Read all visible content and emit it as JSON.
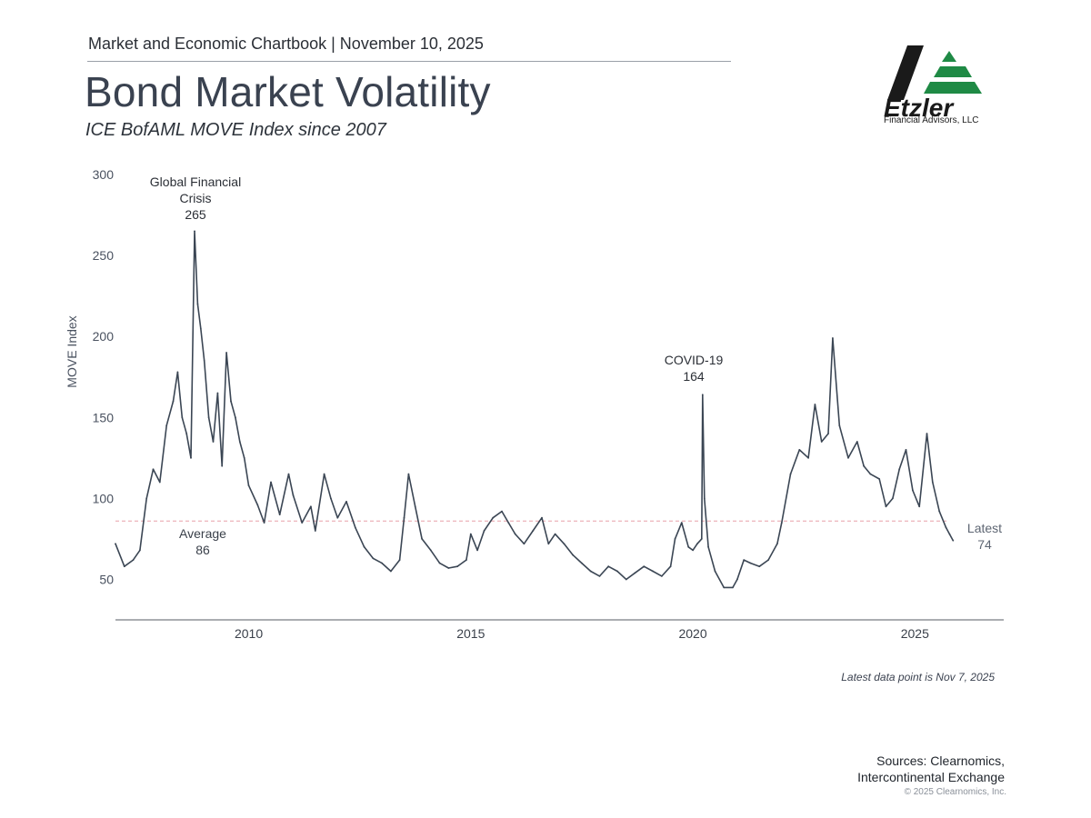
{
  "header": {
    "chartbook_line": "Market and Economic Chartbook | November 10, 2025",
    "title": "Bond Market Volatility",
    "subtitle": "ICE BofAML MOVE Index since 2007"
  },
  "logo": {
    "wordmark": "Etzler",
    "caption": "Financial Advisors, LLC",
    "colors": {
      "dark": "#1a1a1a",
      "green": "#1f8a45"
    }
  },
  "chart_data": {
    "type": "line",
    "series": [
      {
        "name": "ICE BofAML MOVE Index",
        "color": "#3b4654",
        "points": [
          [
            2007.0,
            72
          ],
          [
            2007.2,
            58
          ],
          [
            2007.4,
            62
          ],
          [
            2007.55,
            68
          ],
          [
            2007.7,
            100
          ],
          [
            2007.85,
            118
          ],
          [
            2008.0,
            110
          ],
          [
            2008.15,
            145
          ],
          [
            2008.3,
            160
          ],
          [
            2008.4,
            178
          ],
          [
            2008.5,
            150
          ],
          [
            2008.6,
            140
          ],
          [
            2008.7,
            125
          ],
          [
            2008.78,
            265
          ],
          [
            2008.85,
            220
          ],
          [
            2008.92,
            205
          ],
          [
            2009.0,
            185
          ],
          [
            2009.1,
            150
          ],
          [
            2009.2,
            135
          ],
          [
            2009.3,
            165
          ],
          [
            2009.4,
            120
          ],
          [
            2009.5,
            190
          ],
          [
            2009.6,
            160
          ],
          [
            2009.7,
            150
          ],
          [
            2009.8,
            135
          ],
          [
            2009.9,
            125
          ],
          [
            2010.0,
            108
          ],
          [
            2010.2,
            96
          ],
          [
            2010.35,
            85
          ],
          [
            2010.5,
            110
          ],
          [
            2010.7,
            90
          ],
          [
            2010.9,
            115
          ],
          [
            2011.0,
            102
          ],
          [
            2011.2,
            85
          ],
          [
            2011.4,
            95
          ],
          [
            2011.5,
            80
          ],
          [
            2011.7,
            115
          ],
          [
            2011.85,
            100
          ],
          [
            2012.0,
            88
          ],
          [
            2012.2,
            98
          ],
          [
            2012.4,
            82
          ],
          [
            2012.6,
            70
          ],
          [
            2012.8,
            63
          ],
          [
            2013.0,
            60
          ],
          [
            2013.2,
            55
          ],
          [
            2013.4,
            62
          ],
          [
            2013.5,
            88
          ],
          [
            2013.6,
            115
          ],
          [
            2013.75,
            95
          ],
          [
            2013.9,
            75
          ],
          [
            2014.1,
            68
          ],
          [
            2014.3,
            60
          ],
          [
            2014.5,
            57
          ],
          [
            2014.7,
            58
          ],
          [
            2014.9,
            62
          ],
          [
            2015.0,
            78
          ],
          [
            2015.15,
            68
          ],
          [
            2015.3,
            80
          ],
          [
            2015.5,
            88
          ],
          [
            2015.7,
            92
          ],
          [
            2015.85,
            85
          ],
          [
            2016.0,
            78
          ],
          [
            2016.2,
            72
          ],
          [
            2016.4,
            80
          ],
          [
            2016.6,
            88
          ],
          [
            2016.75,
            72
          ],
          [
            2016.9,
            78
          ],
          [
            2017.1,
            72
          ],
          [
            2017.3,
            65
          ],
          [
            2017.5,
            60
          ],
          [
            2017.7,
            55
          ],
          [
            2017.9,
            52
          ],
          [
            2018.1,
            58
          ],
          [
            2018.3,
            55
          ],
          [
            2018.5,
            50
          ],
          [
            2018.7,
            54
          ],
          [
            2018.9,
            58
          ],
          [
            2019.1,
            55
          ],
          [
            2019.3,
            52
          ],
          [
            2019.5,
            58
          ],
          [
            2019.6,
            75
          ],
          [
            2019.75,
            85
          ],
          [
            2019.9,
            70
          ],
          [
            2020.0,
            68
          ],
          [
            2020.1,
            72
          ],
          [
            2020.2,
            75
          ],
          [
            2020.22,
            164
          ],
          [
            2020.26,
            100
          ],
          [
            2020.35,
            70
          ],
          [
            2020.5,
            55
          ],
          [
            2020.7,
            45
          ],
          [
            2020.9,
            45
          ],
          [
            2021.0,
            50
          ],
          [
            2021.15,
            62
          ],
          [
            2021.3,
            60
          ],
          [
            2021.5,
            58
          ],
          [
            2021.7,
            62
          ],
          [
            2021.9,
            72
          ],
          [
            2022.0,
            85
          ],
          [
            2022.2,
            115
          ],
          [
            2022.4,
            130
          ],
          [
            2022.6,
            125
          ],
          [
            2022.75,
            158
          ],
          [
            2022.9,
            135
          ],
          [
            2023.05,
            140
          ],
          [
            2023.15,
            199
          ],
          [
            2023.3,
            145
          ],
          [
            2023.5,
            125
          ],
          [
            2023.7,
            135
          ],
          [
            2023.85,
            120
          ],
          [
            2024.0,
            115
          ],
          [
            2024.2,
            112
          ],
          [
            2024.35,
            95
          ],
          [
            2024.5,
            100
          ],
          [
            2024.65,
            118
          ],
          [
            2024.8,
            130
          ],
          [
            2024.95,
            105
          ],
          [
            2025.1,
            95
          ],
          [
            2025.27,
            140
          ],
          [
            2025.4,
            110
          ],
          [
            2025.55,
            92
          ],
          [
            2025.7,
            82
          ],
          [
            2025.78,
            78
          ],
          [
            2025.86,
            74
          ]
        ]
      }
    ],
    "average": {
      "value": 86,
      "label": "Average",
      "color": "#e8a0a8"
    },
    "ylabel": "MOVE Index",
    "ylim": [
      25,
      300
    ],
    "yticks": [
      50,
      100,
      150,
      200,
      250,
      300
    ],
    "xlim": [
      2007.0,
      2027.0
    ],
    "xticks": [
      2010,
      2015,
      2020,
      2025
    ],
    "annotations": [
      {
        "lines": [
          "Global Financial",
          "Crisis",
          "265"
        ],
        "x": 2008.78,
        "y": 265
      },
      {
        "lines": [
          "COVID-19",
          "164"
        ],
        "x": 2020.22,
        "y": 164
      },
      {
        "lines": [
          "Average",
          "86"
        ],
        "x": 2008.95,
        "y": 86
      },
      {
        "lines": [
          "Latest",
          "74"
        ],
        "x": 2026.6,
        "y": 74
      }
    ]
  },
  "footer": {
    "note": "Latest data point is Nov 7, 2025",
    "sources_line1": "Sources: Clearnomics,",
    "sources_line2": "Intercontinental Exchange",
    "copyright": "© 2025 Clearnomics, Inc."
  }
}
